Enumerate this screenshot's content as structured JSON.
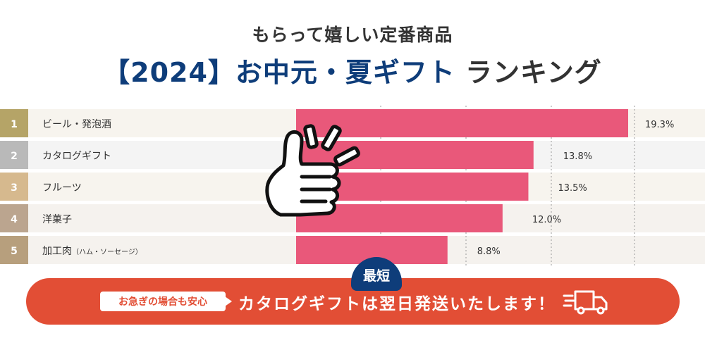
{
  "header": {
    "subtitle": "もらって嬉しい定番商品",
    "headline_main": "【2024】お中元・夏ギフト",
    "headline_sub": "ランキング"
  },
  "chart_data": {
    "type": "bar",
    "orientation": "horizontal",
    "categories": [
      "ビール・発泡酒",
      "カタログギフト",
      "フルーツ",
      "洋菓子",
      "加工肉"
    ],
    "category_notes": [
      "",
      "",
      "",
      "",
      "（ハム・ソーセージ）"
    ],
    "ranks": [
      "1",
      "2",
      "3",
      "4",
      "5"
    ],
    "values": [
      19.3,
      13.8,
      13.5,
      12.0,
      8.8
    ],
    "value_labels": [
      "19.3%",
      "13.8%",
      "13.5%",
      "12.0%",
      "8.8%"
    ],
    "xlim": [
      0,
      21
    ],
    "grid": true,
    "colors": {
      "bar": "#e9587a",
      "rank": [
        "#b5a467",
        "#b9b9b9",
        "#d6b98e",
        "#bba58f",
        "#b79f7d"
      ],
      "row_bg": [
        "#f7f4ee",
        "#f4f4f4",
        "#f7f4ee",
        "#f5f2ee",
        "#f5f2ee"
      ]
    }
  },
  "cta": {
    "badge": "最短",
    "pill": "お急ぎの場合も安心",
    "message": "カタログギフトは翌日発送いたします！",
    "icons": [
      "thumbs-up-icon",
      "delivery-truck-icon"
    ],
    "colors": {
      "button": "#e24e35",
      "badge": "#0e3d7a"
    }
  }
}
